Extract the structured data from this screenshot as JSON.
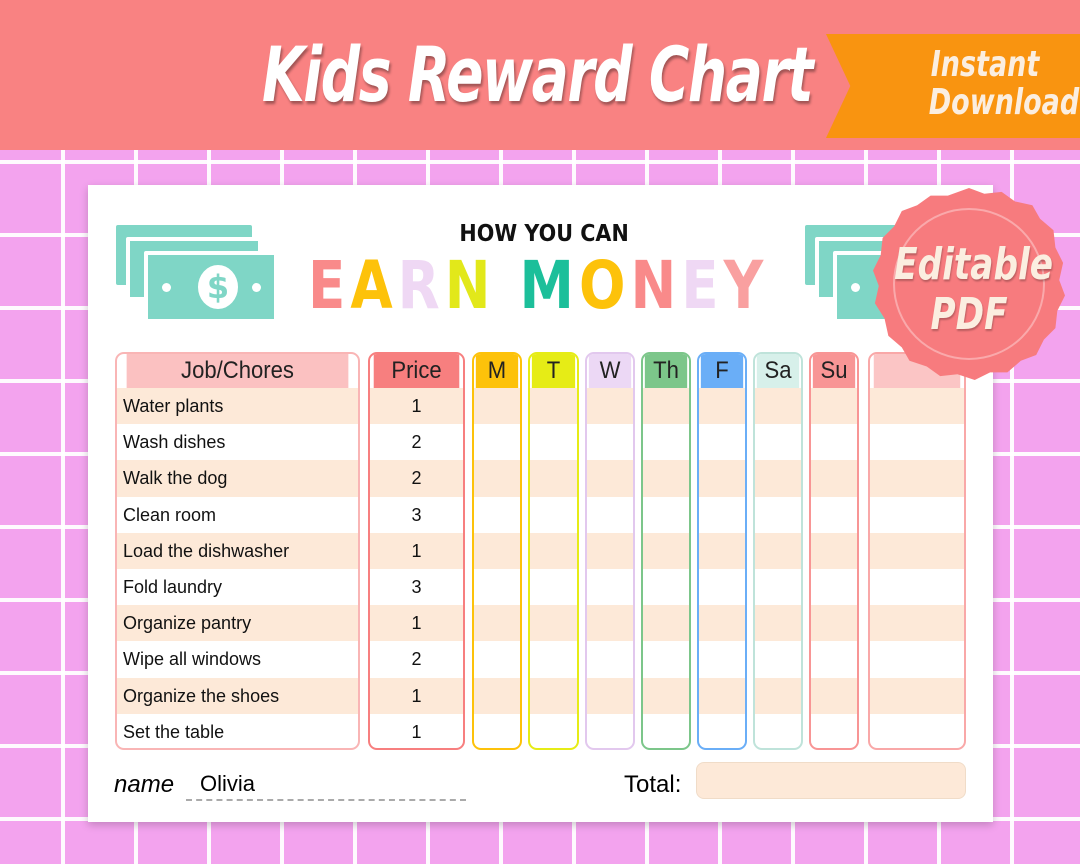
{
  "banner": {
    "title": "Kids Reward Chart",
    "ribbon": "Instant Download",
    "color": "#f98282"
  },
  "badge": {
    "text": "Editable PDF"
  },
  "sheet": {
    "subtitle": "HOW YOU CAN",
    "heading_letters": [
      {
        "ch": "E",
        "color": "#f98a8a"
      },
      {
        "ch": "A",
        "color": "#fdc20a"
      },
      {
        "ch": "R",
        "color": "#efd8f4"
      },
      {
        "ch": "N",
        "color": "#e2e81a"
      },
      {
        "ch": " ",
        "color": "#fff"
      },
      {
        "ch": "M",
        "color": "#1cbf9a"
      },
      {
        "ch": "O",
        "color": "#fdc20a"
      },
      {
        "ch": "N",
        "color": "#f98a8a"
      },
      {
        "ch": "E",
        "color": "#efd8f4"
      },
      {
        "ch": "Y",
        "color": "#f9a0a0"
      }
    ],
    "money_icon": "dollar-bill-icon",
    "columns": [
      {
        "label": "Job/Chores",
        "color": "#fbc1c1",
        "border": "#f9b5b5"
      },
      {
        "label": "Price",
        "color": "#f77f7f",
        "border": "#f77f7f"
      },
      {
        "label": "M",
        "color": "#fdc20a",
        "border": "#fdc20a"
      },
      {
        "label": "T",
        "color": "#e6ec16",
        "border": "#e6ec16"
      },
      {
        "label": "W",
        "color": "#ecd8f5",
        "border": "#e2c8ee"
      },
      {
        "label": "Th",
        "color": "#7cc68a",
        "border": "#7cc68a"
      },
      {
        "label": "F",
        "color": "#6aaef7",
        "border": "#6aaef7"
      },
      {
        "label": "Sa",
        "color": "#d7f0ea",
        "border": "#bfe3da"
      },
      {
        "label": "Su",
        "color": "#f89595",
        "border": "#f89595"
      },
      {
        "label": "",
        "color": "#fbc5c5",
        "border": "#f9a8a8"
      }
    ],
    "chores": [
      {
        "job": "Water plants",
        "price": "1"
      },
      {
        "job": "Wash dishes",
        "price": "2"
      },
      {
        "job": "Walk the dog",
        "price": "2"
      },
      {
        "job": "Clean room",
        "price": "3"
      },
      {
        "job": "Load the dishwasher",
        "price": "1"
      },
      {
        "job": "Fold laundry",
        "price": "3"
      },
      {
        "job": "Organize pantry",
        "price": "1"
      },
      {
        "job": "Wipe all windows",
        "price": "2"
      },
      {
        "job": "Organize the shoes",
        "price": "1"
      },
      {
        "job": "Set the table",
        "price": "1"
      }
    ],
    "name_label": "name",
    "name_value": "Olivia",
    "total_label": "Total:",
    "total_value": ""
  }
}
